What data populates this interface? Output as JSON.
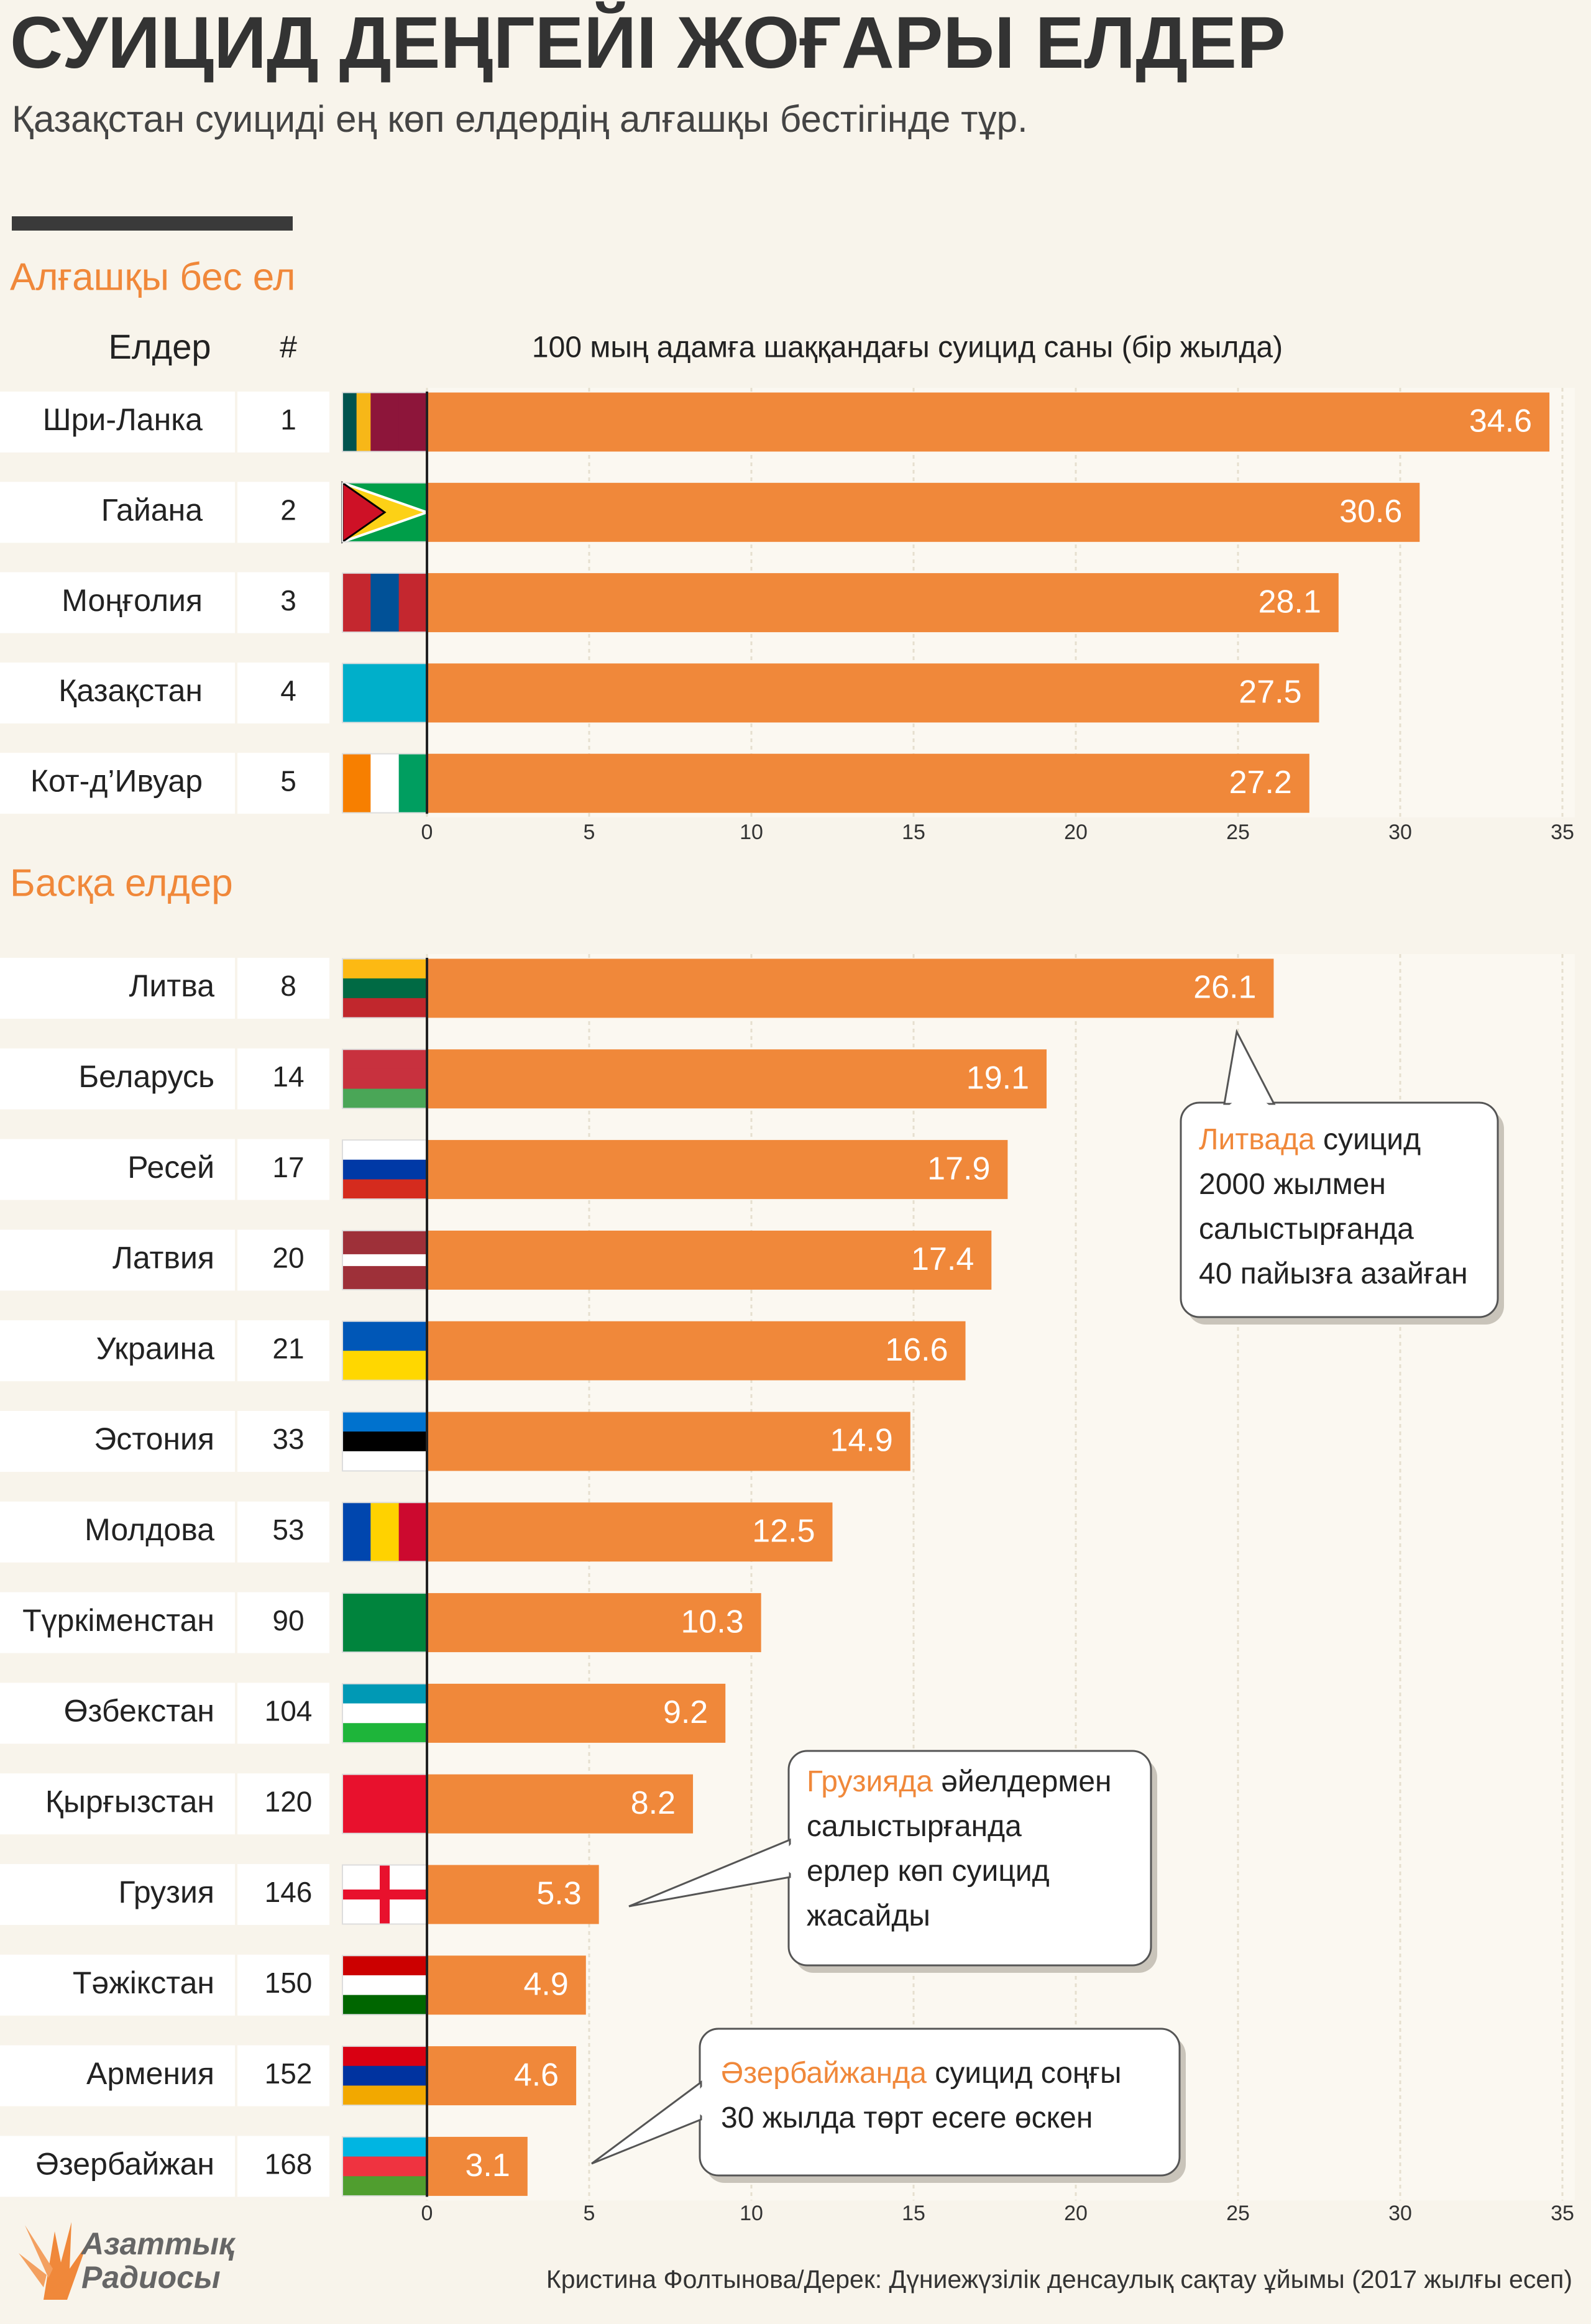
{
  "header": {
    "title": "СУИЦИД ДЕҢГЕЙІ ЖОҒАРЫ ЕЛДЕР",
    "subtitle": "Қазақстан суициді ең көп елдердің алғашқы бестігінде тұр."
  },
  "chart_data": [
    {
      "type": "bar",
      "orientation": "horizontal",
      "section": "Алғашқы бес ел",
      "column_headers": [
        "Елдер",
        "#"
      ],
      "x_label": "100 мың адамға шаққандағы суицид саны (бір жылда)",
      "categories": [
        "Шри-Ланка",
        "Гайана",
        "Моңғолия",
        "Қазақстан",
        "Кот-д’Ивуар"
      ],
      "ranks": [
        1,
        2,
        3,
        4,
        5
      ],
      "values": [
        34.6,
        30.6,
        28.1,
        27.5,
        27.2
      ],
      "color": "#f0883a",
      "xlim": [
        0,
        35
      ],
      "xticks": [
        0,
        5,
        10,
        15,
        20,
        25,
        30,
        35
      ],
      "grid": true
    },
    {
      "type": "bar",
      "orientation": "horizontal",
      "section": "Басқа елдер",
      "categories": [
        "Литва",
        "Беларусь",
        "Ресей",
        "Латвия",
        "Украина",
        "Эстония",
        "Молдова",
        "Түркіменстан",
        "Өзбекстан",
        "Қырғызстан",
        "Грузия",
        "Тәжікстан",
        "Армения",
        "Әзербайжан"
      ],
      "ranks": [
        8,
        14,
        17,
        20,
        21,
        33,
        53,
        90,
        104,
        120,
        146,
        150,
        152,
        168
      ],
      "values": [
        26.1,
        19.1,
        17.9,
        17.4,
        16.6,
        14.9,
        12.5,
        10.3,
        9.2,
        8.2,
        5.3,
        4.9,
        4.6,
        3.1
      ],
      "color": "#f0883a",
      "xlim": [
        0,
        35
      ],
      "xticks": [
        0,
        5,
        10,
        15,
        20,
        25,
        30,
        35
      ],
      "grid": true,
      "annotations": [
        {
          "highlight": "Литвада",
          "lines": [
            " суицид",
            "2000 жылмен",
            "салыстырғанда",
            "40 пайызға азайған"
          ]
        },
        {
          "highlight": "Грузияда",
          "lines": [
            " әйелдермен",
            "салыстырғанда",
            "ерлер көп суицид",
            "жасайды"
          ]
        },
        {
          "highlight": "Әзербайжанда",
          "lines": [
            " суицид соңғы",
            "30 жылда төрт есеге өскен"
          ]
        }
      ]
    }
  ],
  "footer": {
    "logo": [
      "Азаттық",
      "Радиосы"
    ],
    "source": "Кристина Фолтынова/Дерек: Дүниежүзілік денсаулық сақтау ұйымы (2017 жылғы есеп)"
  }
}
